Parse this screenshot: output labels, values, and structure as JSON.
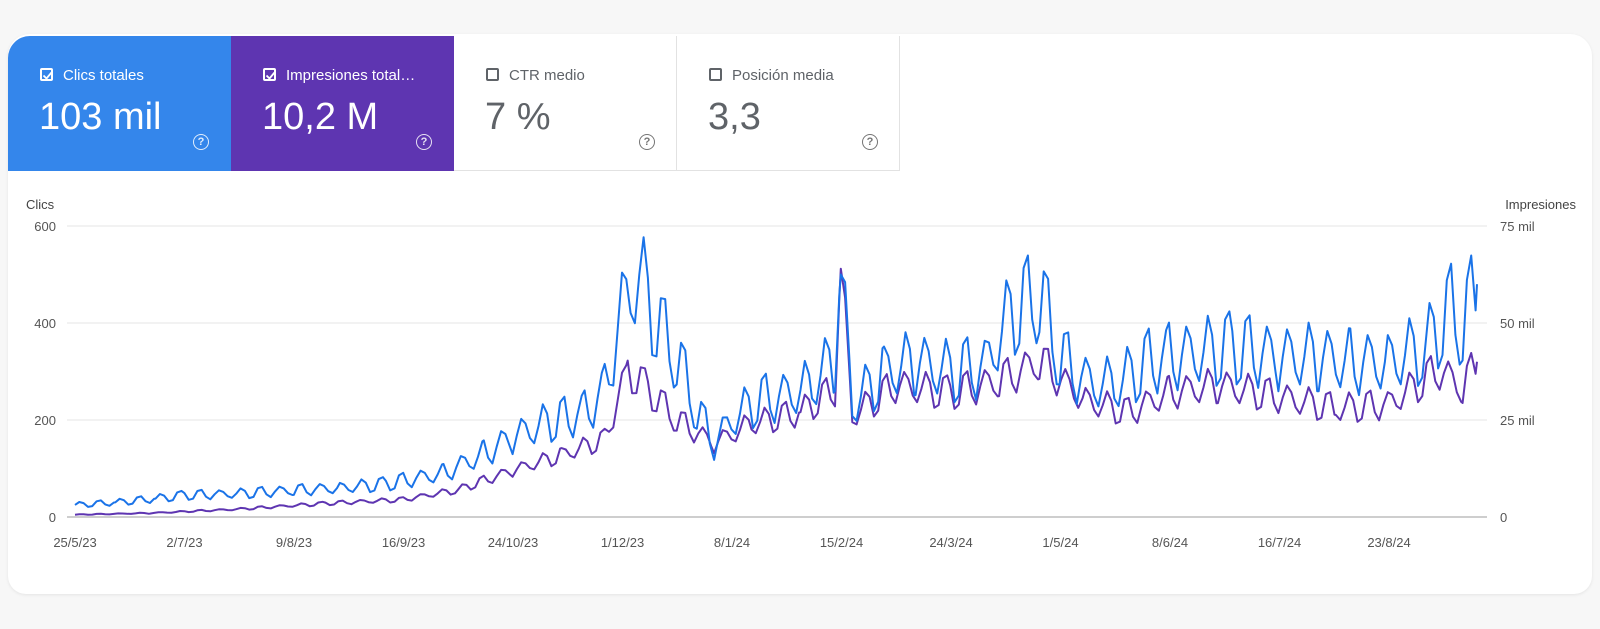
{
  "cards": [
    {
      "label": "Clics totales",
      "value": "103 mil",
      "checked": true
    },
    {
      "label": "Impresiones total…",
      "value": "10,2 M",
      "checked": true
    },
    {
      "label": "CTR medio",
      "value": "7 %",
      "checked": false
    },
    {
      "label": "Posición media",
      "value": "3,3",
      "checked": false
    }
  ],
  "help_glyph": "?",
  "colors": {
    "clicks": "#1a73e8",
    "impressions": "#5e35b1",
    "card_blue": "#3486eb",
    "card_purple": "#5e35b1"
  },
  "chart_data": {
    "type": "line",
    "y_left_label": "Clics",
    "y_right_label": "Impresiones",
    "y_left_ticks": [
      "600",
      "400",
      "200",
      "0"
    ],
    "y_right_ticks": [
      "75 mil",
      "50 mil",
      "25 mil",
      "0"
    ],
    "ylim_left": [
      0,
      600
    ],
    "ylim_right": [
      0,
      75000
    ],
    "x_ticks": [
      "25/5/23",
      "2/7/23",
      "9/8/23",
      "16/9/23",
      "24/10/23",
      "1/12/23",
      "8/1/24",
      "15/2/24",
      "24/3/24",
      "1/5/24",
      "8/6/24",
      "16/7/24",
      "23/8/24"
    ],
    "x_range": [
      "2023-05-25",
      "2024-09-23"
    ],
    "grid": true,
    "series": [
      {
        "name": "Clics",
        "axis": "left",
        "color": "#1a73e8",
        "weekly_points": [
          [
            "2023-05-25",
            25
          ],
          [
            "2023-06-08",
            30
          ],
          [
            "2023-06-22",
            38
          ],
          [
            "2023-07-02",
            45
          ],
          [
            "2023-07-20",
            48
          ],
          [
            "2023-08-09",
            55
          ],
          [
            "2023-08-25",
            60
          ],
          [
            "2023-09-10",
            68
          ],
          [
            "2023-09-16",
            75
          ],
          [
            "2023-09-30",
            90
          ],
          [
            "2023-10-14",
            130
          ],
          [
            "2023-10-24",
            165
          ],
          [
            "2023-11-05",
            195
          ],
          [
            "2023-11-18",
            215
          ],
          [
            "2023-11-25",
            260
          ],
          [
            "2023-12-01",
            430
          ],
          [
            "2023-12-07",
            500
          ],
          [
            "2023-12-13",
            400
          ],
          [
            "2023-12-20",
            330
          ],
          [
            "2023-12-27",
            220
          ],
          [
            "2024-01-02",
            150
          ],
          [
            "2024-01-08",
            200
          ],
          [
            "2024-01-17",
            240
          ],
          [
            "2024-01-26",
            250
          ],
          [
            "2024-02-05",
            270
          ],
          [
            "2024-02-13",
            330
          ],
          [
            "2024-02-15",
            500
          ],
          [
            "2024-02-19",
            230
          ],
          [
            "2024-03-01",
            300
          ],
          [
            "2024-03-12",
            320
          ],
          [
            "2024-03-24",
            300
          ],
          [
            "2024-04-05",
            310
          ],
          [
            "2024-04-14",
            420
          ],
          [
            "2024-04-24",
            460
          ],
          [
            "2024-05-01",
            330
          ],
          [
            "2024-05-10",
            280
          ],
          [
            "2024-05-20",
            270
          ],
          [
            "2024-06-01",
            320
          ],
          [
            "2024-06-08",
            330
          ],
          [
            "2024-06-20",
            340
          ],
          [
            "2024-06-30",
            350
          ],
          [
            "2024-07-16",
            330
          ],
          [
            "2024-07-30",
            330
          ],
          [
            "2024-08-10",
            320
          ],
          [
            "2024-08-23",
            320
          ],
          [
            "2024-09-05",
            350
          ],
          [
            "2024-09-14",
            430
          ],
          [
            "2024-09-18",
            390
          ],
          [
            "2024-09-23",
            480
          ]
        ]
      },
      {
        "name": "Impresiones",
        "axis": "right",
        "color": "#5e35b1",
        "weekly_points": [
          [
            "2023-05-25",
            600
          ],
          [
            "2023-06-20",
            1000
          ],
          [
            "2023-07-20",
            2000
          ],
          [
            "2023-08-20",
            3500
          ],
          [
            "2023-09-16",
            4500
          ],
          [
            "2023-10-05",
            7000
          ],
          [
            "2023-10-24",
            12000
          ],
          [
            "2023-11-10",
            16000
          ],
          [
            "2023-11-25",
            20000
          ],
          [
            "2023-12-03",
            38000
          ],
          [
            "2023-12-10",
            33000
          ],
          [
            "2023-12-20",
            25000
          ],
          [
            "2024-01-02",
            19000
          ],
          [
            "2024-01-15",
            24000
          ],
          [
            "2024-02-01",
            27000
          ],
          [
            "2024-02-13",
            33000
          ],
          [
            "2024-02-15",
            64000
          ],
          [
            "2024-02-19",
            26000
          ],
          [
            "2024-03-05",
            34000
          ],
          [
            "2024-03-24",
            32000
          ],
          [
            "2024-04-10",
            35000
          ],
          [
            "2024-04-24",
            40000
          ],
          [
            "2024-05-10",
            30000
          ],
          [
            "2024-05-25",
            27000
          ],
          [
            "2024-06-08",
            32000
          ],
          [
            "2024-06-25",
            34000
          ],
          [
            "2024-07-16",
            31000
          ],
          [
            "2024-08-05",
            28000
          ],
          [
            "2024-08-23",
            29000
          ],
          [
            "2024-09-10",
            38000
          ],
          [
            "2024-09-18",
            33000
          ],
          [
            "2024-09-23",
            40000
          ]
        ]
      }
    ]
  }
}
